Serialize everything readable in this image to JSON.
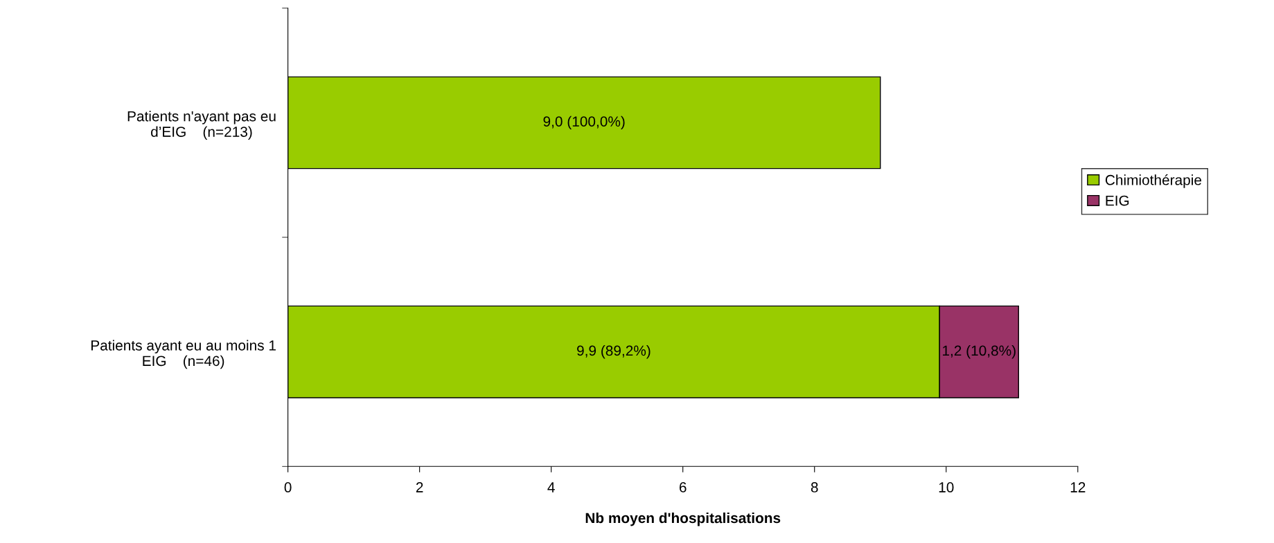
{
  "chart_data": {
    "type": "bar",
    "orientation": "horizontal",
    "stacked": true,
    "xlabel": "Nb moyen d'hospitalisations",
    "categories": [
      "Patients n'ayant pas eu\nd’EIG    (n=213)",
      "Patients ayant eu au moins 1\nEIG    (n=46)"
    ],
    "series": [
      {
        "name": "Chimiothérapie",
        "color": "#99cc00",
        "values": [
          9.0,
          9.9
        ],
        "value_labels": [
          "9,0 (100,0%)",
          "9,9 (89,2%)"
        ]
      },
      {
        "name": "EIG",
        "color": "#993366",
        "values": [
          null,
          1.2
        ],
        "value_labels": [
          null,
          "1,2 (10,8%)"
        ]
      }
    ],
    "xlim": [
      0,
      12
    ],
    "xticks": [
      0,
      2,
      4,
      6,
      8,
      10,
      12
    ],
    "grid": false,
    "legend": "right"
  }
}
